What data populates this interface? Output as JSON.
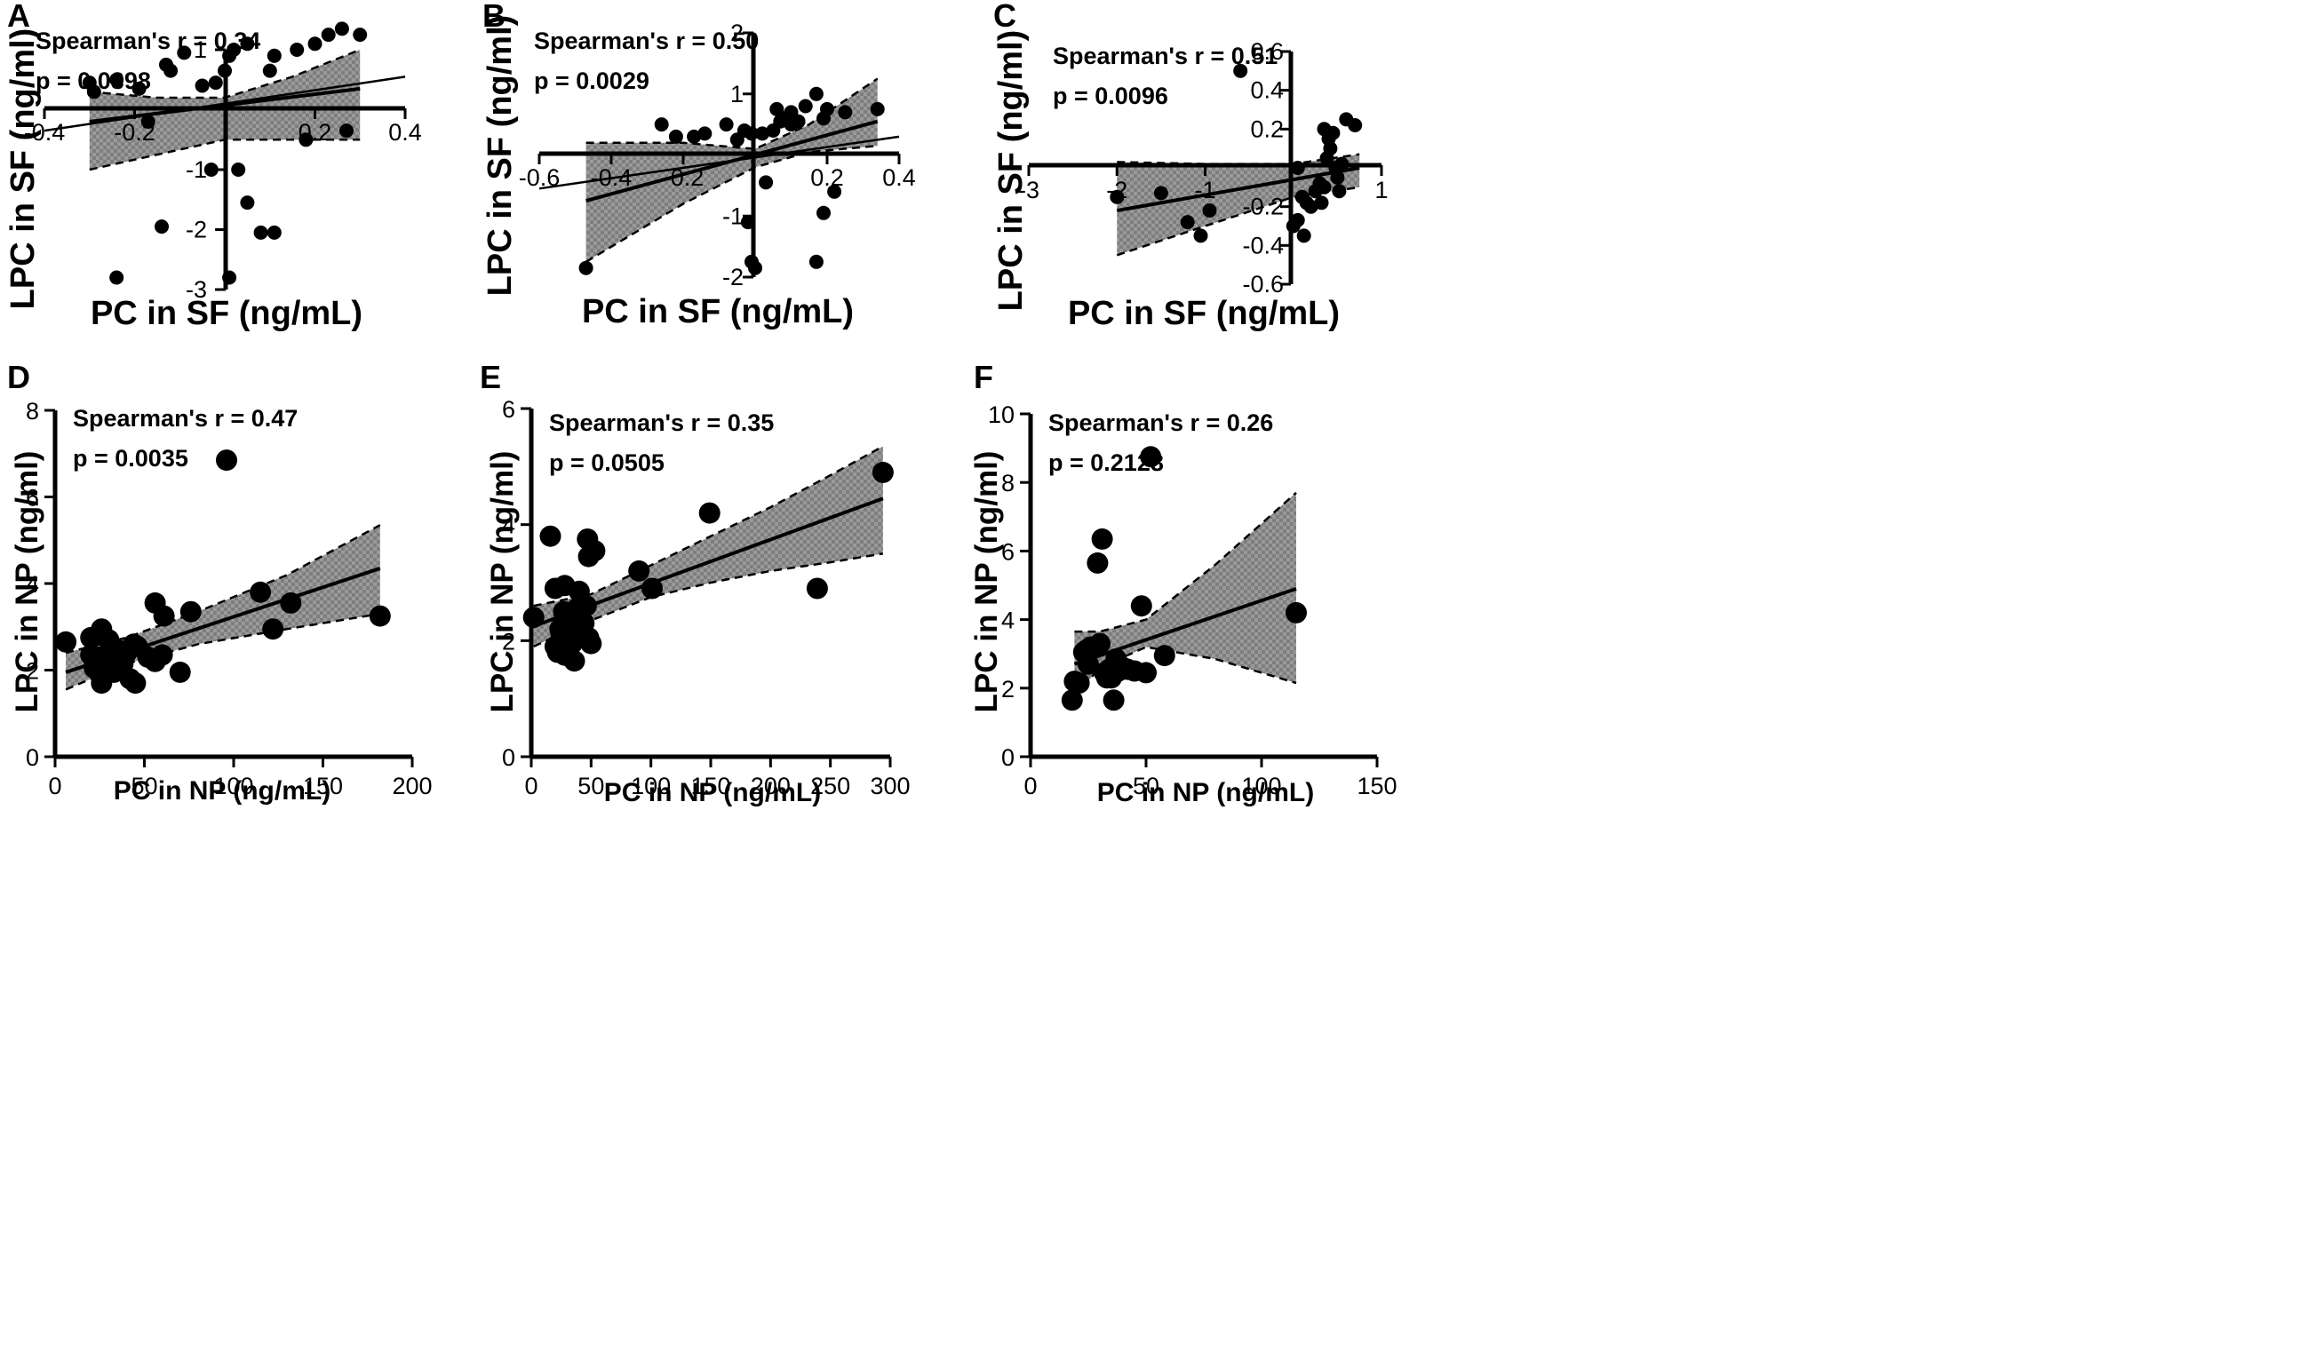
{
  "figure": {
    "panels": [
      "A",
      "B",
      "C",
      "D",
      "E",
      "F"
    ]
  },
  "chart_data": [
    {
      "panel": "A",
      "type": "scatter",
      "style": "centered-axes",
      "title": "",
      "xlabel": "PC in SF (ng/mL)",
      "ylabel": "LPC in SF (ng/ml)",
      "xlim": [
        -0.4,
        0.4
      ],
      "ylim": [
        -3,
        1
      ],
      "xticks": [
        -0.4,
        -0.2,
        0.2,
        0.4
      ],
      "xtick_labels": [
        "-0.4",
        "-0.2",
        "0.2",
        "0.4"
      ],
      "yticks": [
        1,
        -1,
        -2,
        -3
      ],
      "ytick_labels": [
        "1",
        "-1",
        "-2",
        "-3"
      ],
      "stat_r": "Spearman's r = 0.34",
      "stat_p": "p = 0.0398",
      "points": [
        {
          "x": -0.3,
          "y": 0.45
        },
        {
          "x": -0.29,
          "y": 0.3
        },
        {
          "x": -0.24,
          "y": 0.5
        },
        {
          "x": -0.19,
          "y": 0.35
        },
        {
          "x": -0.13,
          "y": 0.75
        },
        {
          "x": -0.12,
          "y": 0.65
        },
        {
          "x": -0.05,
          "y": 0.4
        },
        {
          "x": -0.02,
          "y": 0.45
        },
        {
          "x": 0.0,
          "y": 0.65
        },
        {
          "x": 0.01,
          "y": 0.9
        },
        {
          "x": 0.02,
          "y": 1.0
        },
        {
          "x": 0.05,
          "y": 1.1
        },
        {
          "x": 0.1,
          "y": 0.65
        },
        {
          "x": 0.11,
          "y": 0.9
        },
        {
          "x": 0.16,
          "y": 1.0
        },
        {
          "x": 0.2,
          "y": 1.1
        },
        {
          "x": 0.23,
          "y": 1.25
        },
        {
          "x": 0.26,
          "y": 1.35
        },
        {
          "x": 0.3,
          "y": 1.25
        },
        {
          "x": -0.17,
          "y": -0.2
        },
        {
          "x": -0.03,
          "y": -1.0
        },
        {
          "x": 0.03,
          "y": -1.0
        },
        {
          "x": 0.05,
          "y": -1.55
        },
        {
          "x": 0.08,
          "y": -2.05
        },
        {
          "x": 0.11,
          "y": -2.05
        },
        {
          "x": 0.18,
          "y": -0.5
        },
        {
          "x": 0.27,
          "y": -0.35
        },
        {
          "x": -0.24,
          "y": -2.8
        },
        {
          "x": 0.01,
          "y": -2.8
        },
        {
          "x": -0.14,
          "y": -1.95
        },
        {
          "x": -0.09,
          "y": 0.95
        }
      ],
      "fit": {
        "x": [
          -0.3,
          0.3
        ],
        "y": [
          -0.2,
          0.35
        ]
      },
      "band_upper": {
        "x": [
          -0.3,
          -0.15,
          0.0,
          0.15,
          0.3
        ],
        "y": [
          0.3,
          0.2,
          0.2,
          0.55,
          1.0
        ]
      },
      "band_lower": {
        "x": [
          -0.3,
          -0.15,
          0.0,
          0.15,
          0.3
        ],
        "y": [
          -1.0,
          -0.75,
          -0.5,
          -0.5,
          -0.5
        ]
      },
      "trend": {
        "x": [
          -0.4,
          0.4
        ],
        "y": [
          -0.35,
          0.55
        ]
      }
    },
    {
      "panel": "B",
      "type": "scatter",
      "style": "centered-axes",
      "title": "",
      "xlabel": "PC in SF (ng/mL)",
      "ylabel": "LPC in SF (ng/ml)",
      "xlim": [
        -0.6,
        0.4
      ],
      "ylim": [
        -2,
        2
      ],
      "xticks": [
        -0.6,
        -0.4,
        -0.2,
        0.2,
        0.4
      ],
      "xtick_labels": [
        "-0.6",
        "-0.4",
        "-0.2",
        "0.2",
        "0.4"
      ],
      "yticks": [
        2,
        1,
        -1,
        -2
      ],
      "ytick_labels": [
        "2",
        "1",
        "-1",
        "-2"
      ],
      "stat_r": "Spearman's r = 0.50",
      "stat_p": "p = 0.0029",
      "points": [
        {
          "x": -0.47,
          "y": -1.85
        },
        {
          "x": -0.26,
          "y": 0.5
        },
        {
          "x": -0.22,
          "y": 0.3
        },
        {
          "x": -0.17,
          "y": 0.3
        },
        {
          "x": -0.14,
          "y": 0.35
        },
        {
          "x": -0.08,
          "y": 0.5
        },
        {
          "x": -0.05,
          "y": 0.25
        },
        {
          "x": -0.03,
          "y": 0.4
        },
        {
          "x": -0.01,
          "y": 0.35
        },
        {
          "x": 0.02,
          "y": 0.35
        },
        {
          "x": 0.05,
          "y": 0.4
        },
        {
          "x": 0.06,
          "y": 0.75
        },
        {
          "x": 0.07,
          "y": 0.55
        },
        {
          "x": 0.08,
          "y": 0.6
        },
        {
          "x": 0.1,
          "y": 0.5
        },
        {
          "x": 0.1,
          "y": 0.7
        },
        {
          "x": 0.14,
          "y": 0.8
        },
        {
          "x": 0.17,
          "y": 1.0
        },
        {
          "x": 0.19,
          "y": 0.6
        },
        {
          "x": 0.2,
          "y": 0.75
        },
        {
          "x": 0.25,
          "y": 0.7
        },
        {
          "x": 0.34,
          "y": 0.75
        },
        {
          "x": 0.03,
          "y": -0.45
        },
        {
          "x": -0.02,
          "y": -1.1
        },
        {
          "x": -0.01,
          "y": -1.75
        },
        {
          "x": 0.0,
          "y": -1.85
        },
        {
          "x": 0.17,
          "y": -1.75
        },
        {
          "x": 0.19,
          "y": -0.95
        },
        {
          "x": 0.22,
          "y": -0.6
        },
        {
          "x": 0.12,
          "y": 0.55
        }
      ],
      "fit": {
        "x": [
          -0.47,
          0.34
        ],
        "y": [
          -0.75,
          0.55
        ]
      },
      "band_upper": {
        "x": [
          -0.47,
          -0.2,
          0.0,
          0.15,
          0.34
        ],
        "y": [
          0.2,
          0.2,
          0.1,
          0.5,
          1.25
        ]
      },
      "band_lower": {
        "x": [
          -0.47,
          -0.2,
          0.0,
          0.15,
          0.34
        ],
        "y": [
          -1.75,
          -0.8,
          -0.2,
          0.05,
          0.15
        ]
      },
      "trend": {
        "x": [
          -0.6,
          0.4
        ],
        "y": [
          -0.55,
          0.3
        ]
      }
    },
    {
      "panel": "C",
      "type": "scatter",
      "style": "centered-axes",
      "title": "",
      "xlabel": "PC in SF (ng/mL)",
      "ylabel": "LPC in SF (ng/ml)",
      "xlim": [
        -3,
        1
      ],
      "ylim": [
        -0.6,
        0.6
      ],
      "xticks": [
        -3,
        -2,
        -1,
        1
      ],
      "xtick_labels": [
        "-3",
        "-2",
        "-1",
        "1"
      ],
      "yticks": [
        0.6,
        0.4,
        0.2,
        -0.2,
        -0.4,
        -0.6
      ],
      "ytick_labels": [
        "0.6",
        "0.4",
        "0.2",
        "-0.2",
        "-0.4",
        "-0.6"
      ],
      "stat_r": "Spearman's r = 0.51",
      "stat_p": "p = 0.0096",
      "points": [
        {
          "x": -2.0,
          "y": -0.15
        },
        {
          "x": -1.5,
          "y": -0.13
        },
        {
          "x": -1.2,
          "y": -0.28
        },
        {
          "x": -1.05,
          "y": -0.35
        },
        {
          "x": -0.95,
          "y": -0.22
        },
        {
          "x": -0.6,
          "y": 0.5
        },
        {
          "x": 0.0,
          "y": -0.3
        },
        {
          "x": 0.05,
          "y": -0.27
        },
        {
          "x": 0.1,
          "y": -0.15
        },
        {
          "x": 0.12,
          "y": -0.35
        },
        {
          "x": 0.15,
          "y": -0.18
        },
        {
          "x": 0.2,
          "y": -0.2
        },
        {
          "x": 0.25,
          "y": -0.12
        },
        {
          "x": 0.3,
          "y": -0.08
        },
        {
          "x": 0.32,
          "y": -0.18
        },
        {
          "x": 0.35,
          "y": -0.1
        },
        {
          "x": 0.38,
          "y": 0.05
        },
        {
          "x": 0.4,
          "y": 0.15
        },
        {
          "x": 0.42,
          "y": 0.1
        },
        {
          "x": 0.45,
          "y": 0.18
        },
        {
          "x": 0.48,
          "y": 0.0
        },
        {
          "x": 0.5,
          "y": -0.05
        },
        {
          "x": 0.52,
          "y": -0.12
        },
        {
          "x": 0.55,
          "y": 0.02
        },
        {
          "x": 0.6,
          "y": 0.25
        },
        {
          "x": 0.7,
          "y": 0.22
        },
        {
          "x": 0.35,
          "y": 0.2
        },
        {
          "x": 0.05,
          "y": 0.0
        }
      ],
      "fit": {
        "x": [
          -2.0,
          0.75
        ],
        "y": [
          -0.22,
          0.0
        ]
      },
      "band_upper": {
        "x": [
          -2.0,
          -1.0,
          0.0,
          0.75
        ],
        "y": [
          0.03,
          0.02,
          0.02,
          0.07
        ]
      },
      "band_lower": {
        "x": [
          -2.0,
          -1.0,
          0.0,
          0.75
        ],
        "y": [
          -0.45,
          -0.3,
          -0.15,
          -0.1
        ]
      },
      "trend": null
    },
    {
      "panel": "D",
      "type": "scatter",
      "style": "standard-axes",
      "title": "",
      "xlabel": "PC in NP (ng/mL)",
      "ylabel": "LPC in NP (ng/ml)",
      "xlim": [
        0,
        200
      ],
      "ylim": [
        0,
        8
      ],
      "xticks": [
        0,
        50,
        100,
        150,
        200
      ],
      "xtick_labels": [
        "0",
        "50",
        "100",
        "150",
        "200"
      ],
      "yticks": [
        0,
        2,
        4,
        6,
        8
      ],
      "ytick_labels": [
        "0",
        "2",
        "4",
        "6",
        "8"
      ],
      "stat_r": "Spearman's r = 0.47",
      "stat_p": "p = 0.0035",
      "points": [
        {
          "x": 6,
          "y": 2.65
        },
        {
          "x": 20,
          "y": 2.75
        },
        {
          "x": 20,
          "y": 2.35
        },
        {
          "x": 22,
          "y": 2.2
        },
        {
          "x": 22,
          "y": 2.05
        },
        {
          "x": 24,
          "y": 2.0
        },
        {
          "x": 25,
          "y": 2.3
        },
        {
          "x": 26,
          "y": 1.7
        },
        {
          "x": 26,
          "y": 2.95
        },
        {
          "x": 27,
          "y": 2.1
        },
        {
          "x": 28,
          "y": 2.0
        },
        {
          "x": 29,
          "y": 2.2
        },
        {
          "x": 30,
          "y": 2.7
        },
        {
          "x": 31,
          "y": 2.4
        },
        {
          "x": 32,
          "y": 2.0
        },
        {
          "x": 33,
          "y": 1.95
        },
        {
          "x": 34,
          "y": 2.3
        },
        {
          "x": 36,
          "y": 2.45
        },
        {
          "x": 38,
          "y": 2.15
        },
        {
          "x": 40,
          "y": 2.4
        },
        {
          "x": 42,
          "y": 1.8
        },
        {
          "x": 44,
          "y": 2.6
        },
        {
          "x": 45,
          "y": 1.7
        },
        {
          "x": 46,
          "y": 2.55
        },
        {
          "x": 52,
          "y": 2.3
        },
        {
          "x": 56,
          "y": 2.2
        },
        {
          "x": 56,
          "y": 3.55
        },
        {
          "x": 60,
          "y": 2.35
        },
        {
          "x": 61,
          "y": 3.25
        },
        {
          "x": 70,
          "y": 1.95
        },
        {
          "x": 76,
          "y": 3.35
        },
        {
          "x": 96,
          "y": 6.85
        },
        {
          "x": 115,
          "y": 3.8
        },
        {
          "x": 122,
          "y": 2.95
        },
        {
          "x": 132,
          "y": 3.55
        },
        {
          "x": 182,
          "y": 3.25
        }
      ],
      "fit": {
        "x": [
          6,
          182
        ],
        "y": [
          1.95,
          4.35
        ]
      },
      "band_upper": {
        "x": [
          6,
          40,
          80,
          130,
          182
        ],
        "y": [
          2.4,
          2.75,
          3.35,
          4.2,
          5.35
        ]
      },
      "band_lower": {
        "x": [
          6,
          40,
          80,
          130,
          182
        ],
        "y": [
          1.55,
          2.15,
          2.6,
          2.95,
          3.3
        ]
      },
      "trend": null
    },
    {
      "panel": "E",
      "type": "scatter",
      "style": "standard-axes",
      "title": "",
      "xlabel": "PC in NP (ng/mL)",
      "ylabel": "LPC in NP (ng/ml)",
      "xlim": [
        0,
        300
      ],
      "ylim": [
        0,
        6
      ],
      "xticks": [
        0,
        50,
        100,
        150,
        200,
        250,
        300
      ],
      "xtick_labels": [
        "0",
        "50",
        "100",
        "150",
        "200",
        "250",
        "300"
      ],
      "yticks": [
        0,
        2,
        4,
        6
      ],
      "ytick_labels": [
        "0",
        "2",
        "4",
        "6"
      ],
      "stat_r": "Spearman's r = 0.35",
      "stat_p": "p = 0.0505",
      "points": [
        {
          "x": 2,
          "y": 2.4
        },
        {
          "x": 16,
          "y": 3.8
        },
        {
          "x": 20,
          "y": 1.9
        },
        {
          "x": 20,
          "y": 2.9
        },
        {
          "x": 22,
          "y": 1.8
        },
        {
          "x": 24,
          "y": 2.2
        },
        {
          "x": 25,
          "y": 2.1
        },
        {
          "x": 27,
          "y": 2.5
        },
        {
          "x": 28,
          "y": 2.95
        },
        {
          "x": 28,
          "y": 1.75
        },
        {
          "x": 30,
          "y": 2.0
        },
        {
          "x": 31,
          "y": 2.3
        },
        {
          "x": 33,
          "y": 2.45
        },
        {
          "x": 34,
          "y": 1.95
        },
        {
          "x": 35,
          "y": 2.35
        },
        {
          "x": 36,
          "y": 1.65
        },
        {
          "x": 38,
          "y": 2.55
        },
        {
          "x": 40,
          "y": 2.85
        },
        {
          "x": 42,
          "y": 2.05
        },
        {
          "x": 44,
          "y": 2.3
        },
        {
          "x": 46,
          "y": 2.6
        },
        {
          "x": 47,
          "y": 3.75
        },
        {
          "x": 48,
          "y": 2.05
        },
        {
          "x": 48,
          "y": 3.45
        },
        {
          "x": 50,
          "y": 1.95
        },
        {
          "x": 53,
          "y": 3.55
        },
        {
          "x": 90,
          "y": 3.2
        },
        {
          "x": 101,
          "y": 2.9
        },
        {
          "x": 149,
          "y": 4.2
        },
        {
          "x": 239,
          "y": 2.9
        },
        {
          "x": 294,
          "y": 4.9
        }
      ],
      "fit": {
        "x": [
          2,
          294
        ],
        "y": [
          2.25,
          4.45
        ]
      },
      "band_upper": {
        "x": [
          2,
          50,
          100,
          150,
          200,
          250,
          294
        ],
        "y": [
          2.6,
          2.8,
          3.3,
          3.8,
          4.3,
          4.85,
          5.35
        ]
      },
      "band_lower": {
        "x": [
          2,
          50,
          100,
          150,
          200,
          250,
          294
        ],
        "y": [
          1.9,
          2.35,
          2.75,
          3.0,
          3.2,
          3.35,
          3.5
        ]
      },
      "trend": null
    },
    {
      "panel": "F",
      "type": "scatter",
      "style": "standard-axes",
      "title": "",
      "xlabel": "PC in NP (ng/mL)",
      "ylabel": "LPC in NP (ng/ml)",
      "xlim": [
        0,
        150
      ],
      "ylim": [
        0,
        10
      ],
      "xticks": [
        0,
        50,
        100,
        150
      ],
      "xtick_labels": [
        "0",
        "50",
        "100",
        "150"
      ],
      "yticks": [
        0,
        2,
        4,
        6,
        8,
        10
      ],
      "ytick_labels": [
        "0",
        "2",
        "4",
        "6",
        "8",
        "10"
      ],
      "stat_r": "Spearman's r = 0.26",
      "stat_p": "p = 0.2128",
      "points": [
        {
          "x": 18,
          "y": 1.65
        },
        {
          "x": 19,
          "y": 2.2
        },
        {
          "x": 21,
          "y": 2.15
        },
        {
          "x": 23,
          "y": 3.05
        },
        {
          "x": 24,
          "y": 3.1
        },
        {
          "x": 25,
          "y": 2.7
        },
        {
          "x": 26,
          "y": 3.2
        },
        {
          "x": 29,
          "y": 5.65
        },
        {
          "x": 30,
          "y": 3.3
        },
        {
          "x": 31,
          "y": 6.35
        },
        {
          "x": 32,
          "y": 2.45
        },
        {
          "x": 33,
          "y": 2.3
        },
        {
          "x": 34,
          "y": 2.55
        },
        {
          "x": 35,
          "y": 2.3
        },
        {
          "x": 36,
          "y": 1.65
        },
        {
          "x": 37,
          "y": 2.85
        },
        {
          "x": 38,
          "y": 2.5
        },
        {
          "x": 40,
          "y": 2.6
        },
        {
          "x": 42,
          "y": 2.55
        },
        {
          "x": 45,
          "y": 2.5
        },
        {
          "x": 48,
          "y": 4.4
        },
        {
          "x": 50,
          "y": 2.45
        },
        {
          "x": 52,
          "y": 8.75
        },
        {
          "x": 58,
          "y": 2.95
        },
        {
          "x": 115,
          "y": 4.2
        }
      ],
      "fit": {
        "x": [
          19,
          115
        ],
        "y": [
          2.7,
          4.9
        ]
      },
      "band_upper": {
        "x": [
          19,
          30,
          50,
          80,
          115
        ],
        "y": [
          3.65,
          3.65,
          4.0,
          5.6,
          7.7
        ]
      },
      "band_lower": {
        "x": [
          19,
          30,
          50,
          80,
          115
        ],
        "y": [
          1.75,
          2.6,
          3.2,
          2.85,
          2.15
        ]
      },
      "trend": null
    }
  ]
}
